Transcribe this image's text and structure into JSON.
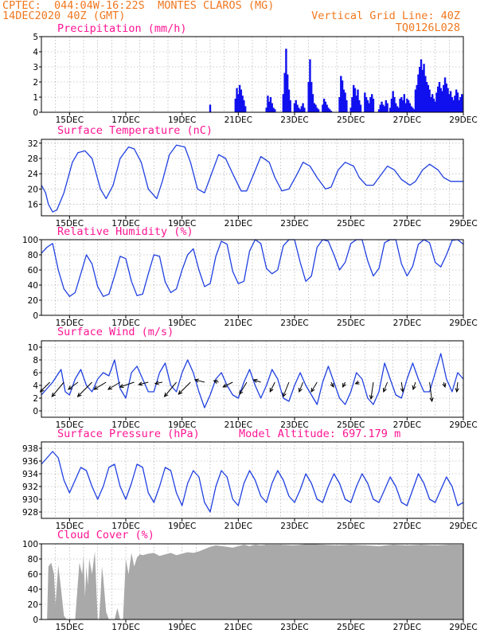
{
  "header": {
    "line1_left": "CPTEC:  044:04W-16:22S  MONTES CLAROS (MG)",
    "line2_left": "14DEC2020 40Z (GMT)",
    "line2_right": "Vertical Grid Line: 40Z",
    "line3_right": "TQ0126L028",
    "title_color": "#f07820"
  },
  "colors": {
    "line": "#2040e0",
    "bar": "#1010ee",
    "cloud": "#a9a9a9",
    "title": "#ff1493",
    "grid": "#a0a0a0"
  },
  "x_axis": {
    "start": "14DEC2020 00Z",
    "end": "29DEC2020 00Z",
    "ticks": [
      "15DEC",
      "17DEC",
      "19DEC",
      "21DEC",
      "23DEC",
      "25DEC",
      "27DEC",
      "29DEC"
    ]
  },
  "chart_data": [
    {
      "type": "bar",
      "title": "Precipitation (mm/h)",
      "ylim": [
        0,
        5
      ],
      "yticks": [
        "0",
        "1",
        "2",
        "3",
        "4",
        "5"
      ],
      "x_unit": "day since 14DEC 00Z",
      "x": [
        6.0,
        6.9,
        6.95,
        7.0,
        7.05,
        7.1,
        7.15,
        7.2,
        7.25,
        8.0,
        8.05,
        8.1,
        8.15,
        8.2,
        8.25,
        8.3,
        8.6,
        8.65,
        8.7,
        8.75,
        8.8,
        8.85,
        9.0,
        9.05,
        9.1,
        9.15,
        9.2,
        9.25,
        9.3,
        9.35,
        9.5,
        9.55,
        9.6,
        9.65,
        9.7,
        9.75,
        9.8,
        9.85,
        10.0,
        10.05,
        10.1,
        10.15,
        10.2,
        10.25,
        10.3,
        10.6,
        10.65,
        10.7,
        10.75,
        10.8,
        10.85,
        11.0,
        11.05,
        11.1,
        11.15,
        11.2,
        11.25,
        11.3,
        11.35,
        11.5,
        11.55,
        11.6,
        11.65,
        11.7,
        11.75,
        11.8,
        12.0,
        12.05,
        12.1,
        12.15,
        12.2,
        12.25,
        12.3,
        12.4,
        12.45,
        12.5,
        12.55,
        12.6,
        12.65,
        12.7,
        12.75,
        12.8,
        12.85,
        12.9,
        12.95,
        13.0,
        13.05,
        13.1,
        13.15,
        13.2,
        13.25,
        13.3,
        13.35,
        13.4,
        13.45,
        13.5,
        13.55,
        13.6,
        13.65,
        13.7,
        13.75,
        13.8,
        13.85,
        13.9,
        13.95,
        14.0,
        14.05,
        14.1,
        14.15,
        14.2,
        14.25,
        14.3,
        14.35,
        14.4,
        14.45,
        14.5,
        14.55,
        14.6,
        14.65,
        14.7,
        14.75,
        14.8,
        14.85,
        14.9,
        14.95
      ],
      "values": [
        0.5,
        0.9,
        1.6,
        1.2,
        1.8,
        1.5,
        1.1,
        0.8,
        0.4,
        0.3,
        1.1,
        0.7,
        1.0,
        0.6,
        0.3,
        0.2,
        1.2,
        2.6,
        4.2,
        2.5,
        1.5,
        0.8,
        0.6,
        0.8,
        0.5,
        0.3,
        0.2,
        0.4,
        0.6,
        0.3,
        2.0,
        3.5,
        2.0,
        1.2,
        0.6,
        0.5,
        0.3,
        0.2,
        0.5,
        0.9,
        0.7,
        0.5,
        0.3,
        0.2,
        0.1,
        1.0,
        2.4,
        2.1,
        1.5,
        1.3,
        0.8,
        0.3,
        1.0,
        1.8,
        1.6,
        1.1,
        1.5,
        0.8,
        0.5,
        1.3,
        1.0,
        0.8,
        0.6,
        1.0,
        1.2,
        0.9,
        0.2,
        0.5,
        0.7,
        0.5,
        0.4,
        0.8,
        0.6,
        0.3,
        0.9,
        1.4,
        1.0,
        0.6,
        0.4,
        0.3,
        0.9,
        1.0,
        0.8,
        1.2,
        0.6,
        0.9,
        0.8,
        0.6,
        0.4,
        0.3,
        0.2,
        1.5,
        1.8,
        2.5,
        3.0,
        3.5,
        2.8,
        3.2,
        2.4,
        2.0,
        1.8,
        1.5,
        1.0,
        1.2,
        0.9,
        0.7,
        1.3,
        1.7,
        2.0,
        1.6,
        1.4,
        1.8,
        2.3,
        1.9,
        1.6,
        1.2,
        1.4,
        1.0,
        0.8,
        1.1,
        1.5,
        1.3,
        0.8,
        1.0,
        1.2
      ]
    },
    {
      "type": "line",
      "title": "Surface Temperature (nC)",
      "ylim": [
        13,
        33
      ],
      "yticks": [
        "16",
        "20",
        "24",
        "28",
        "32"
      ],
      "x": [
        0,
        0.15,
        0.25,
        0.4,
        0.55,
        0.8,
        1.1,
        1.3,
        1.55,
        1.8,
        2.1,
        2.3,
        2.55,
        2.8,
        3.1,
        3.3,
        3.55,
        3.8,
        4.1,
        4.3,
        4.55,
        4.8,
        5.1,
        5.3,
        5.55,
        5.8,
        6.1,
        6.3,
        6.55,
        6.8,
        7.1,
        7.3,
        7.55,
        7.8,
        8.1,
        8.3,
        8.55,
        8.8,
        9.1,
        9.3,
        9.55,
        9.8,
        10.1,
        10.3,
        10.55,
        10.8,
        11.1,
        11.3,
        11.55,
        11.8,
        12.1,
        12.3,
        12.55,
        12.8,
        13.1,
        13.3,
        13.55,
        13.8,
        14.1,
        14.3,
        14.55,
        14.8,
        15.0
      ],
      "values": [
        21,
        19,
        16,
        14,
        14.5,
        19,
        27,
        29.5,
        30,
        28,
        20,
        17.5,
        21,
        28,
        31,
        30.5,
        27,
        20,
        17.5,
        22,
        29,
        31.5,
        31,
        27,
        20,
        19,
        25,
        29,
        28,
        24,
        19.5,
        19.5,
        24,
        28.5,
        27,
        23,
        19.5,
        20,
        24,
        27,
        26,
        23,
        20,
        20.5,
        25,
        27,
        26,
        23,
        21,
        21,
        24,
        26,
        25,
        22.5,
        21,
        22,
        25,
        26.5,
        25,
        23,
        22,
        22,
        22
      ]
    },
    {
      "type": "line",
      "title": "Relative Humidity (%)",
      "ylim": [
        0,
        100
      ],
      "yticks": [
        "0",
        "20",
        "40",
        "60",
        "80",
        "100"
      ],
      "x": [
        0,
        0.2,
        0.4,
        0.6,
        0.8,
        1.0,
        1.2,
        1.4,
        1.6,
        1.8,
        2.0,
        2.2,
        2.4,
        2.6,
        2.8,
        3.0,
        3.2,
        3.4,
        3.6,
        3.8,
        4.0,
        4.2,
        4.4,
        4.6,
        4.8,
        5.0,
        5.2,
        5.4,
        5.6,
        5.8,
        6.0,
        6.2,
        6.4,
        6.6,
        6.8,
        7.0,
        7.2,
        7.4,
        7.6,
        7.8,
        8.0,
        8.2,
        8.4,
        8.6,
        8.8,
        9.0,
        9.2,
        9.4,
        9.6,
        9.8,
        10.0,
        10.2,
        10.4,
        10.6,
        10.8,
        11.0,
        11.2,
        11.4,
        11.6,
        11.8,
        12.0,
        12.2,
        12.4,
        12.6,
        12.8,
        13.0,
        13.2,
        13.4,
        13.6,
        13.8,
        14.0,
        14.2,
        14.4,
        14.6,
        14.8,
        15.0
      ],
      "values": [
        82,
        90,
        95,
        60,
        35,
        25,
        30,
        55,
        80,
        68,
        38,
        25,
        28,
        52,
        78,
        75,
        45,
        26,
        28,
        55,
        80,
        78,
        44,
        30,
        35,
        60,
        80,
        88,
        60,
        38,
        42,
        78,
        98,
        94,
        58,
        42,
        45,
        85,
        100,
        95,
        62,
        55,
        60,
        92,
        100,
        100,
        70,
        45,
        52,
        90,
        100,
        98,
        80,
        60,
        70,
        95,
        100,
        100,
        72,
        52,
        62,
        96,
        100,
        100,
        68,
        52,
        65,
        94,
        100,
        96,
        70,
        64,
        80,
        99,
        100,
        94
      ]
    },
    {
      "type": "line",
      "title": "Surface Wind (m/s)",
      "ylim": [
        -1,
        11
      ],
      "yticks": [
        "0",
        "2",
        "4",
        "6",
        "8",
        "10"
      ],
      "x": [
        0,
        0.2,
        0.4,
        0.55,
        0.7,
        0.85,
        1.0,
        1.2,
        1.4,
        1.6,
        1.8,
        2.0,
        2.2,
        2.4,
        2.6,
        2.8,
        3.0,
        3.2,
        3.4,
        3.6,
        3.8,
        4.0,
        4.2,
        4.4,
        4.6,
        4.8,
        5.0,
        5.2,
        5.4,
        5.6,
        5.8,
        6.0,
        6.2,
        6.4,
        6.6,
        6.8,
        7.0,
        7.2,
        7.4,
        7.6,
        7.8,
        8.0,
        8.2,
        8.4,
        8.6,
        8.8,
        9.0,
        9.2,
        9.4,
        9.6,
        9.8,
        10.0,
        10.2,
        10.4,
        10.6,
        10.8,
        11.0,
        11.2,
        11.4,
        11.6,
        11.8,
        12.0,
        12.2,
        12.4,
        12.6,
        12.8,
        13.0,
        13.2,
        13.4,
        13.6,
        13.8,
        14.0,
        14.2,
        14.4,
        14.6,
        14.8,
        15.0
      ],
      "values": [
        2.5,
        3.5,
        4.5,
        5.5,
        6.5,
        3,
        2.5,
        5,
        6.5,
        4,
        3,
        5,
        6,
        5.5,
        8,
        3.5,
        2,
        6,
        7,
        5,
        3,
        3,
        6,
        7.5,
        4,
        3,
        6,
        8,
        6,
        3,
        0.5,
        2.5,
        5,
        6,
        4,
        2.5,
        2,
        4.5,
        6.5,
        4,
        2,
        4,
        6.5,
        5,
        2,
        1.5,
        4,
        6,
        4,
        2.5,
        1,
        4.5,
        7,
        4.5,
        2,
        1,
        3,
        6,
        5,
        2,
        1,
        3,
        7.5,
        5,
        2.5,
        2,
        5,
        7.5,
        5,
        3,
        3,
        6,
        9,
        5,
        3,
        6,
        5
      ]
    },
    {
      "type": "line",
      "title": "Surface Pressure (hPa)",
      "annotation": "Model Altitude: 697.179  m",
      "ylim": [
        927,
        939
      ],
      "yticks": [
        "928",
        "930",
        "932",
        "934",
        "936",
        "938"
      ],
      "x": [
        0,
        0.2,
        0.4,
        0.6,
        0.8,
        1.0,
        1.2,
        1.4,
        1.6,
        1.8,
        2.0,
        2.2,
        2.4,
        2.6,
        2.8,
        3.0,
        3.2,
        3.4,
        3.6,
        3.8,
        4.0,
        4.2,
        4.4,
        4.6,
        4.8,
        5.0,
        5.2,
        5.4,
        5.6,
        5.8,
        6.0,
        6.2,
        6.4,
        6.6,
        6.8,
        7.0,
        7.2,
        7.4,
        7.6,
        7.8,
        8.0,
        8.2,
        8.4,
        8.6,
        8.8,
        9.0,
        9.2,
        9.4,
        9.6,
        9.8,
        10.0,
        10.2,
        10.4,
        10.6,
        10.8,
        11.0,
        11.2,
        11.4,
        11.6,
        11.8,
        12.0,
        12.2,
        12.4,
        12.6,
        12.8,
        13.0,
        13.2,
        13.4,
        13.6,
        13.8,
        14.0,
        14.2,
        14.4,
        14.6,
        14.8,
        15.0
      ],
      "values": [
        935.5,
        936.5,
        937.5,
        936.5,
        933,
        931,
        933,
        935,
        934.5,
        932,
        930,
        932,
        935,
        935.5,
        932,
        930,
        932.5,
        935.5,
        935,
        931,
        929.5,
        932,
        935,
        934.5,
        931,
        929,
        932.5,
        934.5,
        933.5,
        929.5,
        928,
        932,
        934.5,
        933.5,
        930,
        929,
        932.5,
        934.5,
        933,
        930.5,
        929.5,
        932.5,
        934.5,
        933,
        930.5,
        929.5,
        931.5,
        934,
        932.5,
        930,
        929.5,
        932,
        934,
        932.5,
        930,
        929.5,
        932,
        934,
        932.5,
        930,
        929.5,
        931.5,
        933.5,
        932,
        929.5,
        929,
        931.5,
        934,
        932.5,
        930,
        929.5,
        931.5,
        933.5,
        932,
        929,
        929.5
      ]
    },
    {
      "type": "area",
      "title": "Cloud Cover (%)",
      "ylim": [
        0,
        100
      ],
      "yticks": [
        "0",
        "20",
        "40",
        "60",
        "80",
        "100"
      ],
      "x": [
        0,
        0.2,
        0.25,
        0.35,
        0.45,
        0.5,
        0.6,
        0.7,
        0.8,
        0.9,
        1.0,
        1.2,
        1.35,
        1.45,
        1.5,
        1.55,
        1.6,
        1.65,
        1.7,
        1.8,
        1.9,
        2.0,
        2.05,
        2.1,
        2.15,
        2.2,
        2.3,
        2.4,
        2.5,
        2.6,
        2.7,
        2.8,
        2.9,
        3.0,
        3.1,
        3.2,
        3.3,
        3.4,
        3.5,
        3.6,
        3.8,
        4.0,
        4.2,
        4.4,
        4.6,
        4.8,
        5.0,
        5.2,
        5.4,
        5.6,
        5.8,
        6.0,
        6.2,
        6.4,
        6.6,
        6.8,
        7.0,
        7.2,
        7.4,
        7.6,
        7.8,
        8.0,
        8.5,
        9.0,
        9.5,
        10.0,
        10.5,
        11.0,
        11.5,
        12.0,
        12.5,
        13.0,
        13.5,
        14.0,
        14.5,
        15.0
      ],
      "values": [
        0,
        0,
        70,
        75,
        60,
        20,
        72,
        40,
        5,
        0,
        0,
        0,
        75,
        60,
        85,
        30,
        70,
        45,
        80,
        60,
        90,
        0,
        0,
        30,
        70,
        55,
        10,
        0,
        0,
        0,
        15,
        0,
        0,
        80,
        60,
        88,
        70,
        82,
        86,
        85,
        87,
        88,
        84,
        86,
        88,
        85,
        87,
        89,
        88,
        90,
        93,
        96,
        98,
        97,
        96,
        95,
        97,
        99,
        97,
        99,
        98,
        99,
        99,
        98,
        100,
        99,
        98,
        99,
        98,
        97,
        99,
        98,
        99,
        98,
        99,
        99
      ]
    }
  ],
  "wind_barbs": {
    "x": [
      0.3,
      0.8,
      1.3,
      1.8,
      2.3,
      2.8,
      3.3,
      3.8,
      4.3,
      4.8,
      5.3,
      5.8,
      6.3,
      6.8,
      7.3,
      7.8,
      8.3,
      8.8,
      9.3,
      9.8,
      10.3,
      10.8,
      11.3,
      11.8,
      12.3,
      12.8,
      13.3,
      13.8,
      14.3,
      14.8
    ],
    "u": [
      -2,
      -2.5,
      -2,
      -3,
      -2.5,
      -2.5,
      -3,
      -2,
      -1.5,
      -2.5,
      -2.5,
      -2,
      -1,
      -2,
      -1.5,
      -1.5,
      -1,
      -1.2,
      -0.8,
      -1.2,
      0.5,
      -0.5,
      -0.8,
      -0.5,
      -0.8,
      0.3,
      -0.5,
      0.5,
      0.3,
      -0.2
    ],
    "v": [
      -2,
      -3,
      -1.5,
      -3,
      -1.5,
      -1.5,
      -1,
      -0.5,
      -0.3,
      -3,
      -2.5,
      0.5,
      0.3,
      -1,
      -2.5,
      0.5,
      -2,
      -3,
      -2,
      -2,
      -1,
      -1,
      -0.3,
      -3.5,
      -2,
      -2,
      -1.5,
      -4,
      -1,
      -2
    ]
  }
}
